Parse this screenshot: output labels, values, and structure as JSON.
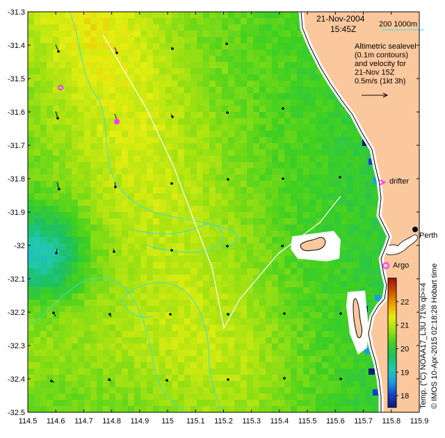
{
  "header": {
    "date": "21-Nov-2004",
    "time": "15:45Z"
  },
  "bathymetry_legend": {
    "label": "200  1000m",
    "color": "#35e0d6"
  },
  "info_box": {
    "lines": [
      "Altimetric sealevel",
      "(0.1m contours)",
      "and velocity for",
      "21-Nov 15Z",
      "0.5m/s (1kt 3h)"
    ]
  },
  "markers": {
    "drifter_label": "drifter",
    "argo_label": "Argo",
    "city_label": "Perth",
    "marker_color": "#ff33ff"
  },
  "colorbar": {
    "min": 17.5,
    "max": 23,
    "ticks": [
      "18",
      "19",
      "20",
      "21",
      "22"
    ],
    "title": "Temp. (°C) NOAA17_L3U 71% ql>=4",
    "palette": [
      "#0b1a78",
      "#1440c8",
      "#1aa0e0",
      "#20c8b0",
      "#1ec060",
      "#40d020",
      "#9ae012",
      "#e6ee10",
      "#f0a000",
      "#d05000",
      "#a01010"
    ]
  },
  "credit": "© IMOS 10-Apr-2015 02:18:28 Hobart time",
  "axes": {
    "x_ticks": [
      "114.5",
      "114.6",
      "114.7",
      "114.8",
      "114.9",
      "115",
      "115.1",
      "115.2",
      "115.3",
      "115.4",
      "115.5",
      "115.6",
      "115.7",
      "115.8",
      "115.9"
    ],
    "y_ticks": [
      "-31.3",
      "-31.4",
      "-31.5",
      "-31.6",
      "-31.7",
      "-31.8",
      "-31.9",
      "-32",
      "-32.1",
      "-32.2",
      "-32.3",
      "-32.4",
      "-32.5"
    ],
    "lon_range": [
      114.5,
      115.9
    ],
    "lat_range": [
      -32.5,
      -31.3
    ]
  },
  "colors": {
    "land": "#fbc89e",
    "coast_white": "#ffffff",
    "track": "#ffffff",
    "contour": "#35e0d6"
  }
}
